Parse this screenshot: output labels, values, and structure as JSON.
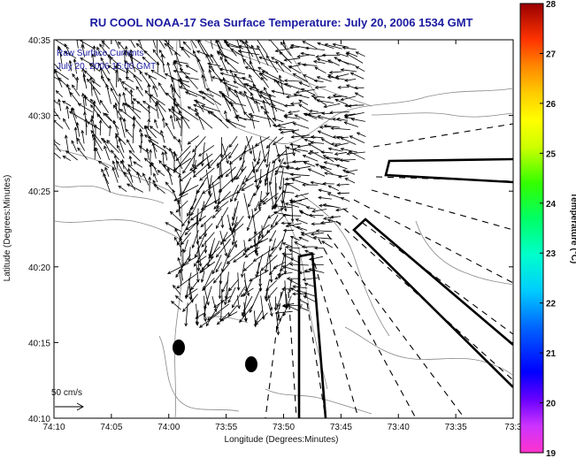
{
  "title": "RU COOL  NOAA-17  Sea Surface Temperature:  July 20, 2006 1534 GMT",
  "legend": {
    "line1": "Raw Surface Currents",
    "line2": "July 20, 2006 15:00 GMT"
  },
  "axes": {
    "xlabel": "Longitude (Degrees:Minutes)",
    "ylabel": "Latitude (Degrees:Minutes)",
    "xticks": [
      "74:10",
      "74:05",
      "74:00",
      "73:55",
      "73:50",
      "73:45",
      "73:40",
      "73:35",
      "73:3"
    ],
    "yticks": [
      "40:35",
      "40:30",
      "40:25",
      "40:20",
      "40:15",
      "40:10"
    ]
  },
  "scale_bar": {
    "label": "50 cm/s"
  },
  "colorbar": {
    "label": "Temperature (°C)",
    "ticks": [
      "28",
      "27",
      "26",
      "25",
      "24",
      "23",
      "22",
      "21",
      "20",
      "19"
    ],
    "min": 19,
    "max": 28
  },
  "colors": {
    "title": "#1a1aa0",
    "legend": "#1a1aa0",
    "land_contour": "#888888",
    "arrows": "#000000"
  }
}
